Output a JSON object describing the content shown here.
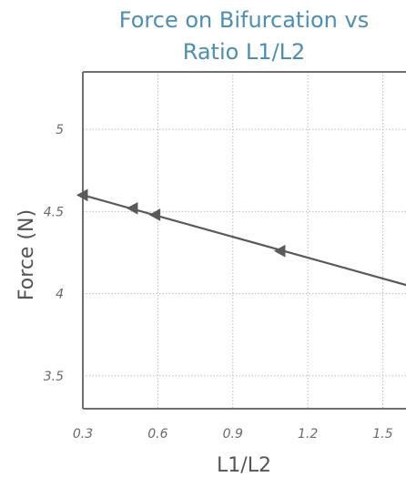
{
  "chart_data": {
    "type": "line",
    "title": "Force on Bifurcation vs Ratio L1/L2",
    "title_lines": [
      "Force on Bifurcation vs",
      "Ratio L1/L2"
    ],
    "xlabel": "L1/L2",
    "ylabel": "Force (N)",
    "xlim": [
      0.3,
      1.6
    ],
    "ylim": [
      3.3,
      5.35
    ],
    "x_ticks": [
      0.3,
      0.6,
      0.9,
      1.2,
      1.5
    ],
    "x_tick_labels": [
      "0.3",
      "0.6",
      "0.9",
      "1.2",
      "1.5"
    ],
    "y_ticks": [
      3.5,
      4,
      4.5,
      5
    ],
    "y_tick_labels": [
      "3.5",
      "4",
      "4.5",
      "5"
    ],
    "grid": true,
    "series": [
      {
        "line": {
          "x": [
            0.3,
            1.6
          ],
          "y": [
            4.6,
            4.05
          ]
        },
        "markers": {
          "x": [
            0.3,
            0.5,
            0.59,
            1.09
          ],
          "y": [
            4.6,
            4.52,
            4.48,
            4.26
          ]
        },
        "marker_shape": "left-triangle",
        "color": "#5a5a5a"
      }
    ],
    "colors": {
      "title": "#4a8fb5",
      "axis_label": "#555555",
      "tick_label": "#6a6a6a",
      "series": "#5a5a5a",
      "grid": "#bdbdbd"
    }
  }
}
